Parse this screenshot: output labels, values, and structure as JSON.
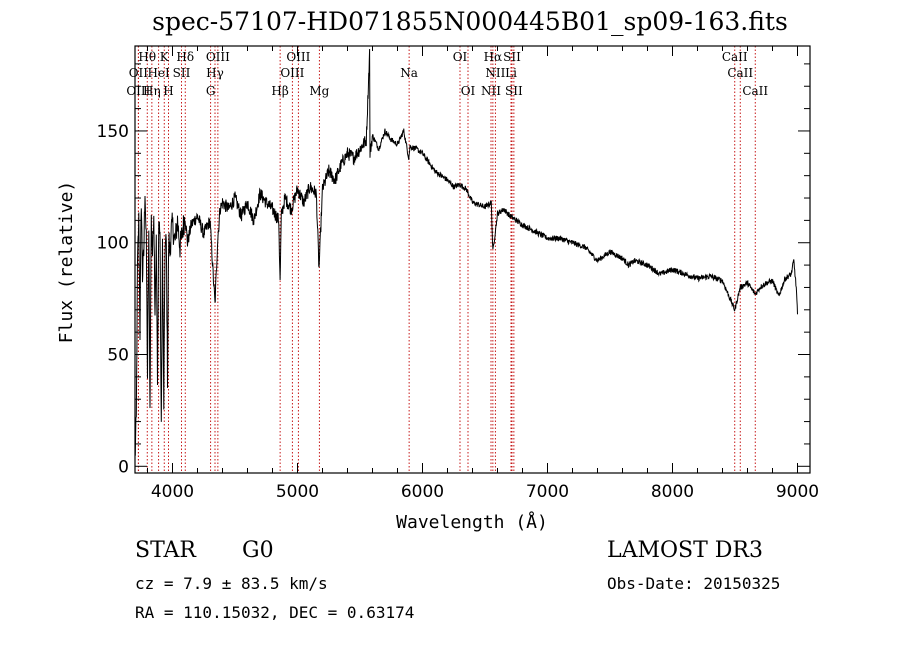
{
  "chart_data": {
    "type": "line",
    "title": "spec-57107-HD071855N000445B01_sp09-163.fits",
    "xlabel": "Wavelength (Å)",
    "ylabel": "Flux (relative)",
    "xlim": [
      3700,
      9100
    ],
    "ylim": [
      -3,
      188
    ],
    "xticks": [
      4000,
      5000,
      6000,
      7000,
      8000,
      9000
    ],
    "yticks": [
      0,
      50,
      100,
      150
    ],
    "series": [
      {
        "name": "flux",
        "x": [
          3700,
          3710,
          3720,
          3730,
          3740,
          3750,
          3760,
          3770,
          3780,
          3790,
          3800,
          3810,
          3820,
          3830,
          3840,
          3850,
          3860,
          3870,
          3880,
          3890,
          3900,
          3910,
          3920,
          3930,
          3940,
          3950,
          3960,
          3970,
          3980,
          3990,
          4000,
          4020,
          4040,
          4060,
          4080,
          4100,
          4120,
          4150,
          4200,
          4250,
          4300,
          4340,
          4360,
          4380,
          4400,
          4450,
          4500,
          4550,
          4600,
          4650,
          4700,
          4750,
          4800,
          4850,
          4861,
          4870,
          4900,
          4950,
          5000,
          5050,
          5100,
          5150,
          5172,
          5200,
          5250,
          5300,
          5350,
          5400,
          5450,
          5500,
          5550,
          5577,
          5580,
          5600,
          5650,
          5700,
          5750,
          5800,
          5850,
          5890,
          5900,
          5950,
          6000,
          6050,
          6100,
          6150,
          6200,
          6250,
          6300,
          6350,
          6400,
          6450,
          6500,
          6550,
          6563,
          6600,
          6650,
          6700,
          6800,
          6900,
          7000,
          7100,
          7200,
          7300,
          7400,
          7500,
          7600,
          7650,
          7700,
          7800,
          7900,
          8000,
          8100,
          8200,
          8300,
          8400,
          8498,
          8542,
          8600,
          8662,
          8700,
          8750,
          8800,
          8850,
          8900,
          8950,
          8970,
          8990,
          9000
        ],
        "y": [
          3,
          20,
          90,
          110,
          60,
          120,
          85,
          95,
          125,
          100,
          40,
          105,
          25,
          110,
          95,
          115,
          70,
          100,
          35,
          110,
          105,
          15,
          100,
          28,
          98,
          100,
          40,
          102,
          95,
          106,
          108,
          100,
          110,
          98,
          105,
          112,
          100,
          108,
          112,
          104,
          110,
          72,
          100,
          115,
          118,
          115,
          120,
          112,
          118,
          110,
          122,
          118,
          115,
          110,
          82,
          112,
          120,
          115,
          124,
          118,
          125,
          122,
          88,
          124,
          132,
          128,
          135,
          140,
          138,
          142,
          146,
          185,
          140,
          148,
          142,
          150,
          146,
          144,
          150,
          138,
          143,
          142,
          140,
          136,
          132,
          130,
          128,
          125,
          126,
          124,
          118,
          117,
          116,
          118,
          96,
          113,
          115,
          112,
          108,
          105,
          102,
          102,
          100,
          98,
          92,
          96,
          93,
          90,
          92,
          90,
          86,
          88,
          86,
          84,
          85,
          83,
          70,
          80,
          82,
          77,
          80,
          82,
          83,
          76,
          84,
          86,
          92,
          80,
          68
        ]
      }
    ],
    "lines": [
      {
        "name": "Hθ",
        "wl": 3798,
        "row": 1
      },
      {
        "name": "OII",
        "wl": 3727,
        "row": 2
      },
      {
        "name": "OIII",
        "wl": 3727,
        "row": 3
      },
      {
        "name": "K",
        "wl": 3934,
        "row": 1
      },
      {
        "name": "HeI",
        "wl": 3889,
        "row": 2
      },
      {
        "name": "Hη",
        "wl": 3835,
        "row": 3
      },
      {
        "name": "Hδ",
        "wl": 4102,
        "row": 1
      },
      {
        "name": "SII",
        "wl": 4072,
        "row": 2
      },
      {
        "name": "H",
        "wl": 3968,
        "row": 3
      },
      {
        "name": "OIII",
        "wl": 4363,
        "row": 1
      },
      {
        "name": "Hγ",
        "wl": 4340,
        "row": 2
      },
      {
        "name": "G",
        "wl": 4305,
        "row": 3
      },
      {
        "name": "OIII",
        "wl": 5007,
        "row": 1
      },
      {
        "name": "OIII",
        "wl": 4959,
        "row": 2
      },
      {
        "name": "Hβ",
        "wl": 4861,
        "row": 3
      },
      {
        "name": "Mg",
        "wl": 5175,
        "row": 3
      },
      {
        "name": "Na",
        "wl": 5893,
        "row": 2
      },
      {
        "name": "OI",
        "wl": 6300,
        "row": 1
      },
      {
        "name": "OI",
        "wl": 6364,
        "row": 3
      },
      {
        "name": "Hα",
        "wl": 6563,
        "row": 1
      },
      {
        "name": "SII",
        "wl": 6716,
        "row": 1
      },
      {
        "name": "NII",
        "wl": 6583,
        "row": 2
      },
      {
        "name": "Li",
        "wl": 6708,
        "row": 2
      },
      {
        "name": "NII",
        "wl": 6548,
        "row": 3
      },
      {
        "name": "SII",
        "wl": 6731,
        "row": 3
      },
      {
        "name": "CaII",
        "wl": 8498,
        "row": 1
      },
      {
        "name": "CaII",
        "wl": 8542,
        "row": 2
      },
      {
        "name": "CaII",
        "wl": 8662,
        "row": 3
      }
    ]
  },
  "info": {
    "object_class": "STAR",
    "subclass": "G0",
    "cz": "cz = 7.9 ± 83.5 km/s",
    "coords": "RA = 110.15032, DEC =   0.63174",
    "survey": "LAMOST DR3",
    "obs_date": "Obs-Date: 20150325"
  },
  "colors": {
    "spectrum": "#000000",
    "line_marker": "#c00000",
    "axis": "#000000"
  }
}
